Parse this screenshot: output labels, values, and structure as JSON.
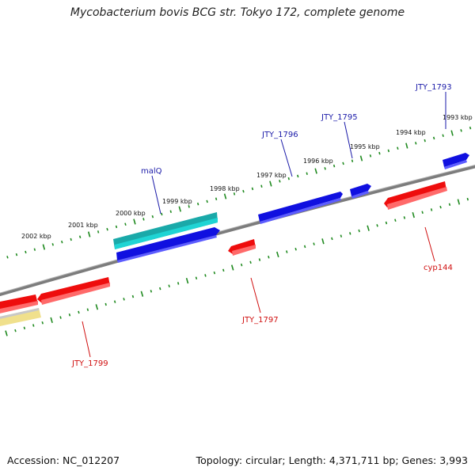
{
  "title": "Mycobacterium bovis BCG str. Tokyo 172, complete genome",
  "footer": {
    "accession": "Accession: NC_012207",
    "stats": "Topology: circular; Length: 4,371,711 bp; Genes: 3,993"
  },
  "colors": {
    "backbone": "#808080",
    "tick": "#1f8a1f",
    "gene_forward": "#1010e0",
    "gene_reverse": "#ee0d0d",
    "rna": "#19c4c4",
    "pseudo": "#f0e08c",
    "label_forward": "#1a1aa8",
    "label_reverse": "#d01010"
  },
  "kbp_labels": [
    "2002 kbp",
    "2001 kbp",
    "2000 kbp",
    "1999 kbp",
    "1998 kbp",
    "1997 kbp",
    "1996 kbp",
    "1995 kbp",
    "1994 kbp",
    "1993 kbp"
  ],
  "gene_labels": {
    "jty_1793": "JTY_1793",
    "jty_1795": "JTY_1795",
    "jty_1796": "JTY_1796",
    "malq": "malQ",
    "cyp144": "cyp144",
    "jty_1797": "JTY_1797",
    "jty_1799": "JTY_1799"
  }
}
